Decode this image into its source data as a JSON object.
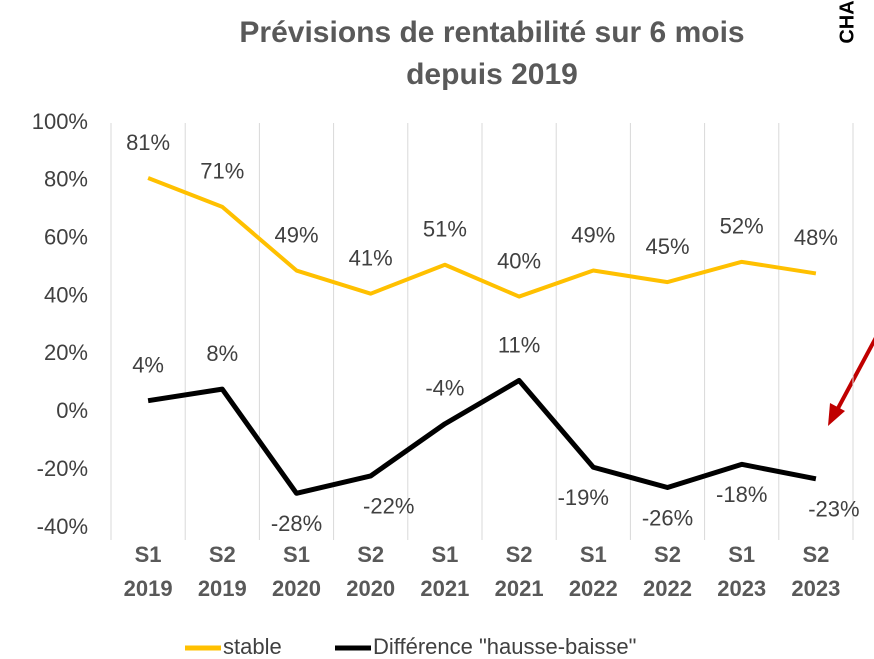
{
  "chart_data": {
    "type": "line",
    "title": [
      "Prévisions de rentabilité sur 6 mois",
      "depuis 2019"
    ],
    "annotation": "CHA",
    "categories": [
      "S1 2019",
      "S2 2019",
      "S1 2020",
      "S2 2020",
      "S1 2021",
      "S2 2021",
      "S1 2022",
      "S2 2022",
      "S1 2023",
      "S2 2023"
    ],
    "series": [
      {
        "name": "stable",
        "color": "#ffc000",
        "values": [
          81,
          71,
          49,
          41,
          51,
          40,
          49,
          45,
          52,
          48
        ],
        "value_labels": [
          "81%",
          "71%",
          "49%",
          "41%",
          "51%",
          "40%",
          "49%",
          "45%",
          "52%",
          "48%"
        ]
      },
      {
        "name": "Différence \"hausse-baisse\"",
        "color": "#000000",
        "values": [
          4,
          8,
          -28,
          -22,
          -4,
          11,
          -19,
          -26,
          -18,
          -23
        ],
        "value_labels": [
          "4%",
          "8%",
          "-28%",
          "-22%",
          "-4%",
          "11%",
          "-19%",
          "-26%",
          "-18%",
          "-23%"
        ]
      }
    ],
    "ylim": [
      -40,
      100
    ],
    "yticks": [
      {
        "value": -40,
        "label": "-40%"
      },
      {
        "value": -20,
        "label": "-20%"
      },
      {
        "value": 0,
        "label": "0%"
      },
      {
        "value": 20,
        "label": "20%"
      },
      {
        "value": 40,
        "label": "40%"
      },
      {
        "value": 60,
        "label": "60%"
      },
      {
        "value": 80,
        "label": "80%"
      },
      {
        "value": 100,
        "label": "100%"
      }
    ],
    "grid": "vertical",
    "legend": "bottom"
  }
}
